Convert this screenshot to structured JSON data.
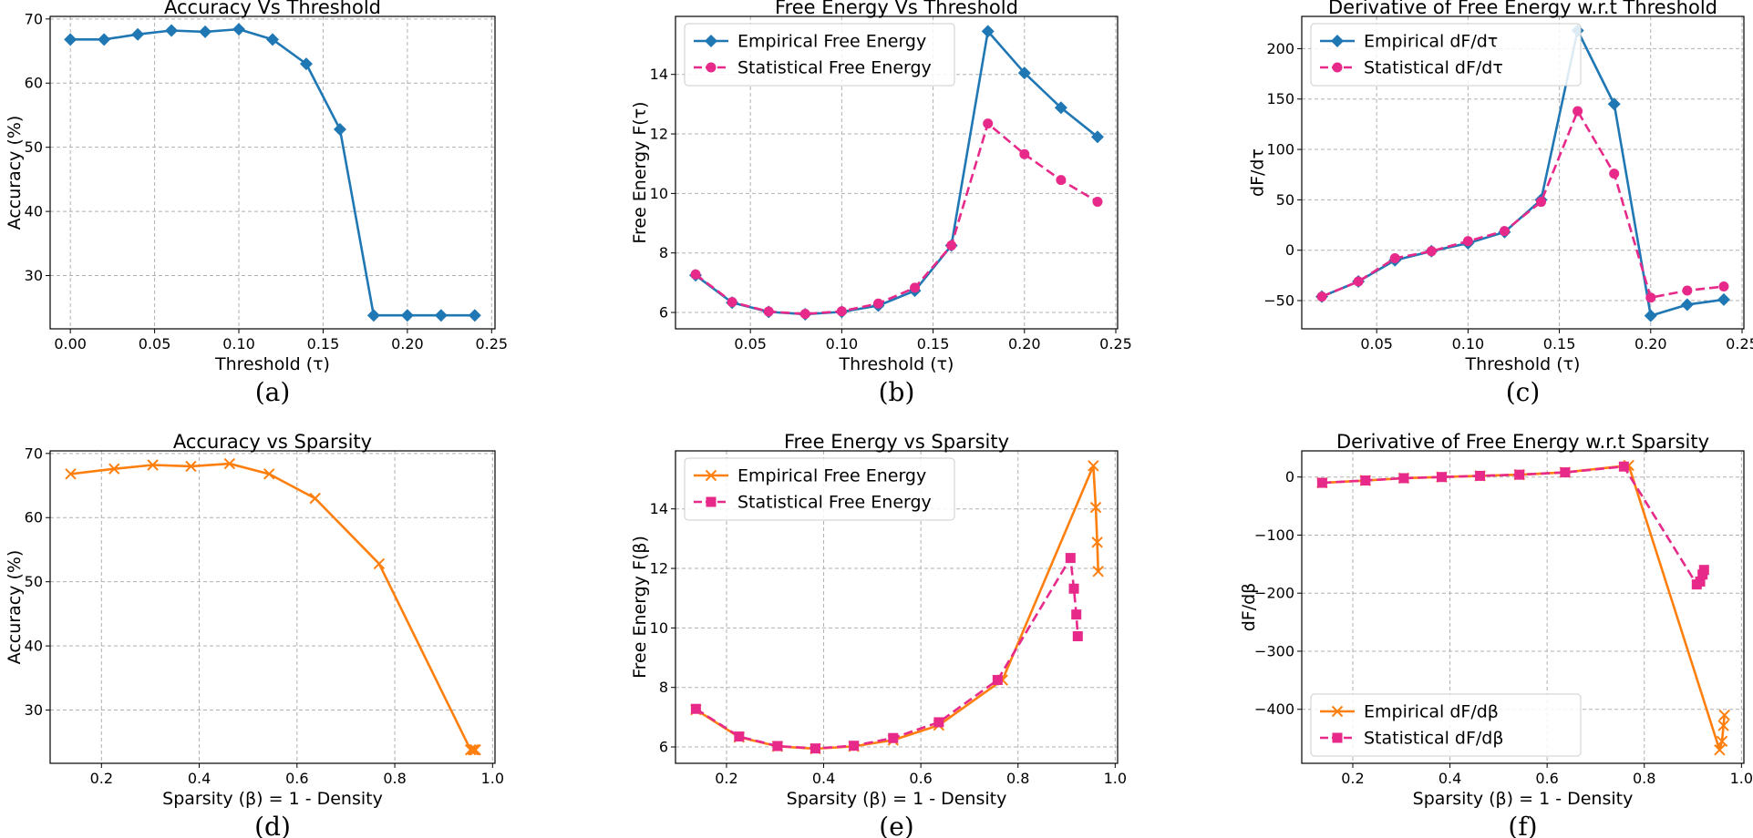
{
  "colors": {
    "blue": "#1f77b4",
    "orange": "#ff7f0e",
    "magenta": "#e7298a"
  },
  "chart_data": [
    {
      "id": "a",
      "type": "line",
      "caption": "(a)",
      "title": "Accuracy Vs Threshold",
      "xlabel": "Threshold (τ)",
      "ylabel": "Accuracy (%)",
      "xlim": [
        -0.012,
        0.252
      ],
      "ylim": [
        21.7,
        70.4
      ],
      "xticks": [
        0.0,
        0.05,
        0.1,
        0.15,
        0.2,
        0.25
      ],
      "xtick_labels": [
        "0.00",
        "0.05",
        "0.10",
        "0.15",
        "0.20",
        "0.25"
      ],
      "yticks": [
        30,
        40,
        50,
        60,
        70
      ],
      "ytick_labels": [
        "30",
        "40",
        "50",
        "60",
        "70"
      ],
      "legend": null,
      "series": [
        {
          "name": "Accuracy",
          "color": "blue",
          "marker": "diamond",
          "dash": "solid",
          "x": [
            0.0,
            0.02,
            0.04,
            0.06,
            0.08,
            0.1,
            0.12,
            0.14,
            0.16,
            0.18,
            0.2,
            0.22,
            0.24
          ],
          "y": [
            66.8,
            66.8,
            67.6,
            68.2,
            68.0,
            68.4,
            66.8,
            63.0,
            52.8,
            23.8,
            23.8,
            23.8,
            23.8
          ]
        }
      ]
    },
    {
      "id": "b",
      "type": "line",
      "caption": "(b)",
      "title": "Free Energy Vs Threshold",
      "xlabel": "Threshold (τ)",
      "ylabel": "Free Energy F(τ)",
      "xlim": [
        0.009,
        0.251
      ],
      "ylim": [
        5.45,
        15.95
      ],
      "xticks": [
        0.05,
        0.1,
        0.15,
        0.2,
        0.25
      ],
      "xtick_labels": [
        "0.05",
        "0.10",
        "0.15",
        "0.20",
        "0.25"
      ],
      "yticks": [
        6,
        8,
        10,
        12,
        14
      ],
      "ytick_labels": [
        "6",
        "8",
        "10",
        "12",
        "14"
      ],
      "legend": "top-left",
      "series": [
        {
          "name": "Empirical Free Energy",
          "color": "blue",
          "marker": "diamond",
          "dash": "solid",
          "x": [
            0.02,
            0.04,
            0.06,
            0.08,
            0.1,
            0.12,
            0.14,
            0.16,
            0.18,
            0.2,
            0.22,
            0.24
          ],
          "y": [
            7.25,
            6.33,
            6.02,
            5.94,
            6.02,
            6.23,
            6.73,
            8.25,
            15.45,
            14.05,
            12.88,
            11.9
          ]
        },
        {
          "name": "Statistical Free Energy",
          "color": "magenta",
          "marker": "circle",
          "dash": "dashed",
          "x": [
            0.02,
            0.04,
            0.06,
            0.08,
            0.1,
            0.12,
            0.14,
            0.16,
            0.18,
            0.2,
            0.22,
            0.24
          ],
          "y": [
            7.28,
            6.35,
            6.03,
            5.95,
            6.04,
            6.3,
            6.83,
            8.25,
            12.35,
            11.32,
            10.45,
            9.72
          ]
        }
      ]
    },
    {
      "id": "c",
      "type": "line",
      "caption": "(c)",
      "title": "Derivative of Free Energy w.r.t Threshold",
      "xlabel": "Threshold (τ)",
      "ylabel": "dF/dτ",
      "xlim": [
        0.009,
        0.251
      ],
      "ylim": [
        -78,
        232
      ],
      "xticks": [
        0.05,
        0.1,
        0.15,
        0.2,
        0.25
      ],
      "xtick_labels": [
        "0.05",
        "0.10",
        "0.15",
        "0.20",
        "0.25"
      ],
      "yticks": [
        -50,
        0,
        50,
        100,
        150,
        200
      ],
      "ytick_labels": [
        "−50",
        "0",
        "50",
        "100",
        "150",
        "200"
      ],
      "legend": "top-left",
      "series": [
        {
          "name": "Empirical dF/dτ",
          "color": "blue",
          "marker": "diamond",
          "dash": "solid",
          "x": [
            0.02,
            0.04,
            0.06,
            0.08,
            0.1,
            0.12,
            0.14,
            0.16,
            0.18,
            0.2,
            0.22,
            0.24
          ],
          "y": [
            -46,
            -31,
            -10,
            -1,
            7,
            18,
            50,
            218,
            145,
            -65,
            -54,
            -49
          ]
        },
        {
          "name": "Statistical dF/dτ",
          "color": "magenta",
          "marker": "circle",
          "dash": "dashed",
          "x": [
            0.02,
            0.04,
            0.06,
            0.08,
            0.1,
            0.12,
            0.14,
            0.16,
            0.18,
            0.2,
            0.22,
            0.24
          ],
          "y": [
            -46,
            -31,
            -8,
            -1,
            9,
            19,
            48,
            138,
            76,
            -47,
            -40,
            -36
          ]
        }
      ]
    },
    {
      "id": "d",
      "type": "line",
      "caption": "(d)",
      "title": "Accuracy vs Sparsity",
      "xlabel": "Sparsity (β) = 1 - Density",
      "ylabel": "Accuracy (%)",
      "xlim": [
        0.095,
        1.005
      ],
      "ylim": [
        21.7,
        70.4
      ],
      "xticks": [
        0.2,
        0.4,
        0.6,
        0.8,
        1.0
      ],
      "xtick_labels": [
        "0.2",
        "0.4",
        "0.6",
        "0.8",
        "1.0"
      ],
      "yticks": [
        30,
        40,
        50,
        60,
        70
      ],
      "ytick_labels": [
        "30",
        "40",
        "50",
        "60",
        "70"
      ],
      "legend": null,
      "series": [
        {
          "name": "Accuracy",
          "color": "orange",
          "marker": "x",
          "dash": "solid",
          "x": [
            0.137,
            0.226,
            0.305,
            0.383,
            0.462,
            0.543,
            0.637,
            0.768,
            0.955,
            0.96,
            0.963,
            0.965
          ],
          "y": [
            66.8,
            67.6,
            68.2,
            68.0,
            68.4,
            66.8,
            63.0,
            52.8,
            23.8,
            23.8,
            23.8,
            23.8
          ]
        }
      ]
    },
    {
      "id": "e",
      "type": "line",
      "caption": "(e)",
      "title": "Free Energy vs Sparsity",
      "xlabel": "Sparsity (β) = 1 - Density",
      "ylabel": "Free Energy F(β)",
      "xlim": [
        0.095,
        1.005
      ],
      "ylim": [
        5.45,
        15.95
      ],
      "xticks": [
        0.2,
        0.4,
        0.6,
        0.8,
        1.0
      ],
      "xtick_labels": [
        "0.2",
        "0.4",
        "0.6",
        "0.8",
        "1.0"
      ],
      "yticks": [
        6,
        8,
        10,
        12,
        14
      ],
      "ytick_labels": [
        "6",
        "8",
        "10",
        "12",
        "14"
      ],
      "legend": "top-left",
      "series": [
        {
          "name": "Empirical Free Energy",
          "color": "orange",
          "marker": "x",
          "dash": "solid",
          "x": [
            0.137,
            0.226,
            0.305,
            0.383,
            0.462,
            0.543,
            0.637,
            0.768,
            0.955,
            0.96,
            0.963,
            0.965
          ],
          "y": [
            7.25,
            6.33,
            6.02,
            5.94,
            6.02,
            6.23,
            6.73,
            8.25,
            15.45,
            14.05,
            12.88,
            11.9
          ]
        },
        {
          "name": "Statistical Free Energy",
          "color": "magenta",
          "marker": "square",
          "dash": "dashed",
          "x": [
            0.137,
            0.226,
            0.305,
            0.383,
            0.462,
            0.543,
            0.637,
            0.758,
            0.908,
            0.915,
            0.92,
            0.923
          ],
          "y": [
            7.28,
            6.35,
            6.03,
            5.95,
            6.04,
            6.3,
            6.83,
            8.25,
            12.35,
            11.32,
            10.45,
            9.72
          ]
        }
      ]
    },
    {
      "id": "f",
      "type": "line",
      "caption": "(f)",
      "title": "Derivative of Free Energy w.r.t Sparsity",
      "xlabel": "Sparsity (β) = 1 - Density",
      "ylabel": "dF/dβ",
      "xlim": [
        0.095,
        1.005
      ],
      "ylim": [
        -493,
        45
      ],
      "xticks": [
        0.2,
        0.4,
        0.6,
        0.8,
        1.0
      ],
      "xtick_labels": [
        "0.2",
        "0.4",
        "0.6",
        "0.8",
        "1.0"
      ],
      "yticks": [
        -400,
        -300,
        -200,
        -100,
        0
      ],
      "ytick_labels": [
        "−400",
        "−300",
        "−200",
        "−100",
        "0"
      ],
      "legend": "bottom-left",
      "series": [
        {
          "name": "Empirical dF/dβ",
          "color": "orange",
          "marker": "x",
          "dash": "solid",
          "x": [
            0.137,
            0.226,
            0.305,
            0.383,
            0.462,
            0.543,
            0.637,
            0.768,
            0.955,
            0.96,
            0.963,
            0.965
          ],
          "y": [
            -10,
            -6,
            -2,
            0,
            2,
            4,
            8,
            20,
            -470,
            -455,
            -428,
            -410
          ]
        },
        {
          "name": "Statistical dF/dβ",
          "color": "magenta",
          "marker": "square",
          "dash": "dashed",
          "x": [
            0.137,
            0.226,
            0.305,
            0.383,
            0.462,
            0.543,
            0.637,
            0.758,
            0.908,
            0.915,
            0.92,
            0.923
          ],
          "y": [
            -10,
            -6,
            -2,
            0,
            2,
            4,
            8,
            18,
            -185,
            -180,
            -168,
            -160
          ]
        }
      ]
    }
  ]
}
